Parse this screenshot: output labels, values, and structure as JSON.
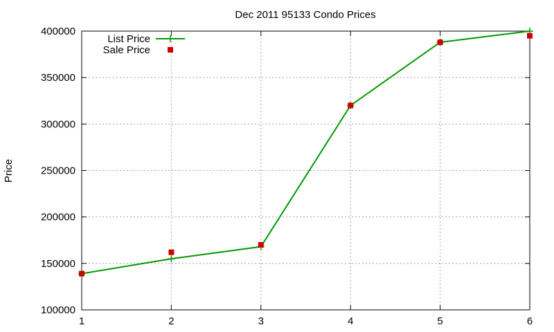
{
  "chart_data": {
    "type": "line",
    "title": "Dec 2011 95133 Condo Prices",
    "xlabel": "",
    "ylabel": "Price",
    "xlim": [
      1,
      6
    ],
    "ylim": [
      100000,
      400000
    ],
    "x_ticks": [
      "1",
      "2",
      "3",
      "4",
      "5",
      "6"
    ],
    "y_ticks": [
      "100000",
      "150000",
      "200000",
      "250000",
      "300000",
      "350000",
      "400000"
    ],
    "grid": true,
    "legend_position": "top-left",
    "x": [
      1,
      2,
      3,
      4,
      5,
      6
    ],
    "series": [
      {
        "name": "List Price",
        "style": "line-plus",
        "color": "#009900",
        "values": [
          139000,
          155000,
          168000,
          320000,
          388000,
          400000
        ]
      },
      {
        "name": "Sale Price",
        "style": "square-points",
        "color": "#cc0000",
        "values": [
          139000,
          162000,
          170000,
          320000,
          388000,
          395000
        ]
      }
    ]
  }
}
